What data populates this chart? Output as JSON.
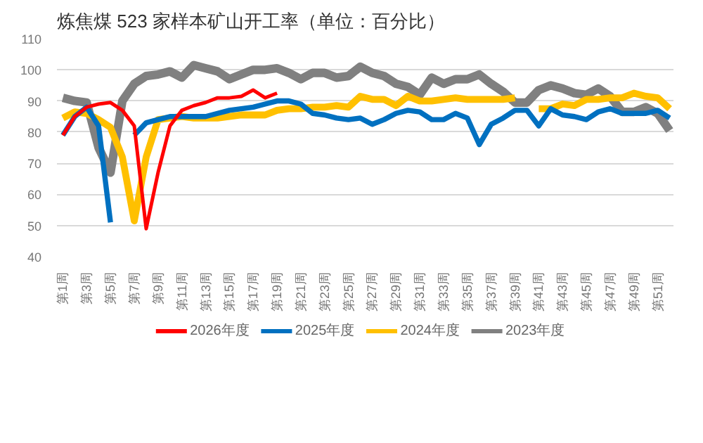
{
  "chart_data": {
    "type": "line",
    "title": "炼焦煤 523 家样本矿山开工率（单位：百分比）",
    "categories": [
      "第1周",
      null,
      "第3周",
      null,
      "第5周",
      null,
      "第7周",
      null,
      "第9周",
      null,
      "第11周",
      null,
      "第13周",
      null,
      "第15周",
      null,
      "第17周",
      null,
      "第19周",
      null,
      "第21周",
      null,
      "第23周",
      null,
      "第25周",
      null,
      "第27周",
      null,
      "第29周",
      null,
      "第31周",
      null,
      "第33周",
      null,
      "第35周",
      null,
      "第37周",
      null,
      "第39周",
      null,
      "第41周",
      null,
      "第43周",
      null,
      "第45周",
      null,
      "第47周",
      null,
      "第49周",
      null,
      "第51周",
      null
    ],
    "series": [
      {
        "name": "2026年度",
        "color": "#ff0000",
        "values": [
          79,
          85,
          88,
          89,
          89.5,
          87,
          82,
          49,
          67,
          82,
          87,
          88.5,
          89.5,
          91,
          91,
          91.5,
          93.5,
          91,
          92.5,
          null,
          null,
          null,
          null,
          null,
          null,
          null,
          null,
          null,
          null,
          null,
          null,
          null,
          null,
          null,
          null,
          null,
          null,
          null,
          null,
          null,
          null,
          null,
          null,
          null,
          null,
          null,
          null,
          null,
          null,
          null,
          null,
          null
        ]
      },
      {
        "name": "2025年度",
        "color": "#0070c0",
        "values": [
          79,
          85,
          88,
          82,
          51,
          null,
          79,
          83,
          84,
          85,
          85,
          85,
          85,
          86,
          87,
          87.5,
          88,
          89,
          90,
          90,
          89,
          86,
          85.5,
          84.5,
          84,
          84.5,
          82.5,
          84,
          86,
          87,
          86.5,
          84,
          84,
          86,
          84.5,
          76,
          82.5,
          84.5,
          87,
          87,
          82,
          87.5,
          85.5,
          85,
          84,
          86.5,
          87.5,
          86,
          86,
          86,
          87,
          84.5
        ]
      },
      {
        "name": "2024年度",
        "color": "#ffc000",
        "values": [
          84.5,
          86.5,
          86,
          84,
          81.5,
          72,
          51.5,
          72,
          84,
          84.5,
          85,
          84.5,
          84.5,
          84.5,
          85,
          85.5,
          85.5,
          85.5,
          87,
          87.5,
          87.5,
          88,
          88,
          88.5,
          88,
          91.5,
          90.5,
          90.5,
          88.5,
          91.5,
          90,
          90,
          90.5,
          91,
          90.5,
          90.5,
          90.5,
          90.5,
          91,
          null,
          87.5,
          87.5,
          89,
          88.5,
          90.5,
          90.5,
          91,
          91,
          92.5,
          91.5,
          91,
          87.5
        ]
      },
      {
        "name": "2023年度",
        "color": "#808080",
        "values": [
          91,
          90,
          89.5,
          75,
          67,
          90,
          95.5,
          98,
          98.5,
          99.5,
          97.5,
          101.5,
          100.5,
          99.5,
          97,
          98.5,
          100,
          100,
          100.5,
          99,
          97,
          99,
          99,
          97.5,
          98,
          101,
          99,
          98,
          95.5,
          94.5,
          92,
          97.5,
          95.5,
          97,
          97,
          98.5,
          95.5,
          93,
          89.5,
          89.5,
          93.5,
          95,
          94,
          92.5,
          92,
          94,
          91.5,
          86.5,
          86.5,
          88,
          86,
          80.5
        ]
      }
    ],
    "ylim": [
      40,
      110
    ],
    "yticks": [
      40,
      50,
      60,
      70,
      80,
      90,
      100,
      110
    ],
    "grid": "y",
    "legend": "bottom",
    "line_style": "solid"
  }
}
